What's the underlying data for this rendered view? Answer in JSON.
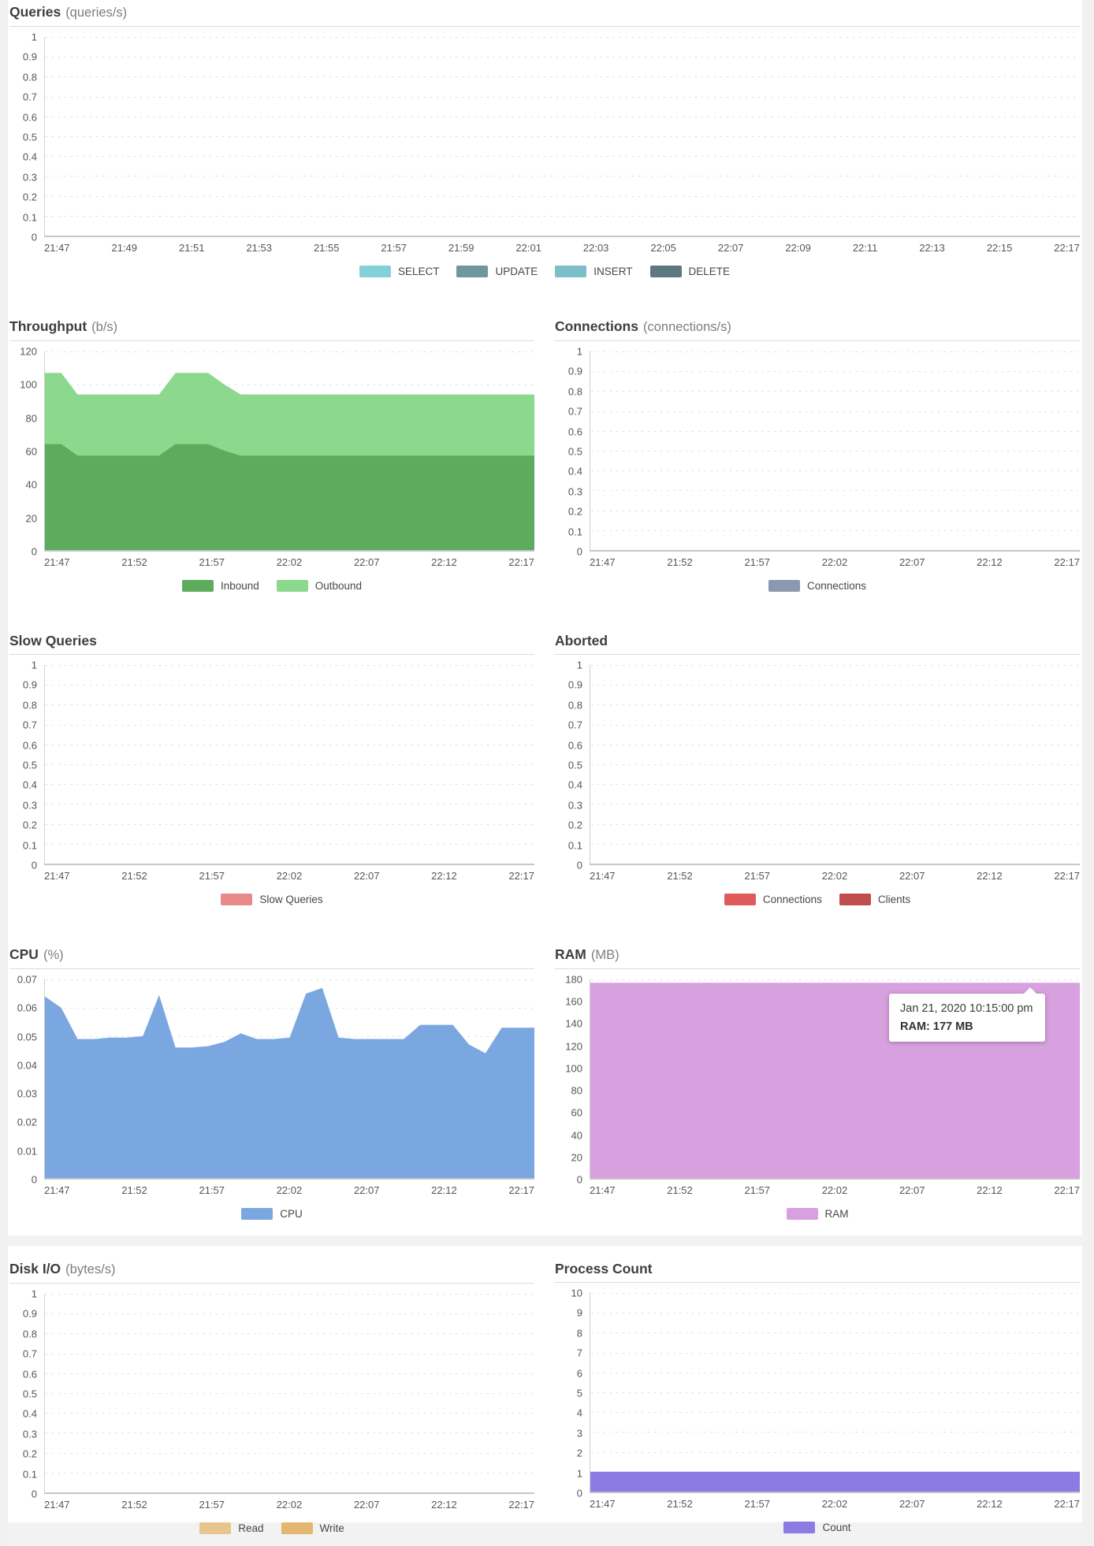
{
  "chart_data": [
    {
      "id": "queries",
      "type": "line",
      "title": "Queries",
      "unit": "(queries/s)",
      "ylim": [
        0,
        1
      ],
      "y_ticks": [
        "1",
        "0.9",
        "0.8",
        "0.7",
        "0.6",
        "0.5",
        "0.4",
        "0.3",
        "0.2",
        "0.1",
        "0"
      ],
      "x_ticks": [
        "21:47",
        "21:49",
        "21:51",
        "21:53",
        "21:55",
        "21:57",
        "21:59",
        "22:01",
        "22:03",
        "22:05",
        "22:07",
        "22:09",
        "22:11",
        "22:13",
        "22:15",
        "22:17"
      ],
      "series": [
        {
          "name": "SELECT",
          "color": "#84d0d8",
          "values": []
        },
        {
          "name": "UPDATE",
          "color": "#6e979e",
          "values": []
        },
        {
          "name": "INSERT",
          "color": "#7cbec9",
          "values": []
        },
        {
          "name": "DELETE",
          "color": "#5c7980",
          "values": []
        }
      ]
    },
    {
      "id": "throughput",
      "type": "area",
      "stacked": true,
      "title": "Throughput",
      "unit": "(b/s)",
      "ylim": [
        0,
        120
      ],
      "y_ticks": [
        "120",
        "100",
        "80",
        "60",
        "40",
        "20",
        "0"
      ],
      "x_ticks": [
        "21:47",
        "21:52",
        "21:57",
        "22:02",
        "22:07",
        "22:12",
        "22:17"
      ],
      "series": [
        {
          "name": "Inbound",
          "color": "#5dab5d",
          "values": [
            64,
            64,
            57,
            57,
            57,
            57,
            57,
            57,
            64,
            64,
            64,
            60,
            57,
            57,
            57,
            57,
            57,
            57,
            57,
            57,
            57,
            57,
            57,
            57,
            57,
            57,
            57,
            57,
            57,
            57,
            57
          ]
        },
        {
          "name": "Outbound",
          "color": "#8cd88c",
          "values": [
            43,
            43,
            37,
            37,
            37,
            37,
            37,
            37,
            43,
            43,
            43,
            40,
            37,
            37,
            37,
            37,
            37,
            37,
            37,
            37,
            37,
            37,
            37,
            37,
            37,
            37,
            37,
            37,
            37,
            37,
            37
          ]
        }
      ]
    },
    {
      "id": "connections",
      "type": "line",
      "title": "Connections",
      "unit": "(connections/s)",
      "ylim": [
        0,
        1
      ],
      "y_ticks": [
        "1",
        "0.9",
        "0.8",
        "0.7",
        "0.6",
        "0.5",
        "0.4",
        "0.3",
        "0.2",
        "0.1",
        "0"
      ],
      "x_ticks": [
        "21:47",
        "21:52",
        "21:57",
        "22:02",
        "22:07",
        "22:12",
        "22:17"
      ],
      "series": [
        {
          "name": "Connections",
          "color": "#8b99b0",
          "values": []
        }
      ]
    },
    {
      "id": "slow_queries",
      "type": "line",
      "title": "Slow Queries",
      "unit": "",
      "ylim": [
        0,
        1
      ],
      "y_ticks": [
        "1",
        "0.9",
        "0.8",
        "0.7",
        "0.6",
        "0.5",
        "0.4",
        "0.3",
        "0.2",
        "0.1",
        "0"
      ],
      "x_ticks": [
        "21:47",
        "21:52",
        "21:57",
        "22:02",
        "22:07",
        "22:12",
        "22:17"
      ],
      "series": [
        {
          "name": "Slow Queries",
          "color": "#e88a8a",
          "values": []
        }
      ]
    },
    {
      "id": "aborted",
      "type": "line",
      "title": "Aborted",
      "unit": "",
      "ylim": [
        0,
        1
      ],
      "y_ticks": [
        "1",
        "0.9",
        "0.8",
        "0.7",
        "0.6",
        "0.5",
        "0.4",
        "0.3",
        "0.2",
        "0.1",
        "0"
      ],
      "x_ticks": [
        "21:47",
        "21:52",
        "21:57",
        "22:02",
        "22:07",
        "22:12",
        "22:17"
      ],
      "series": [
        {
          "name": "Connections",
          "color": "#df5b5b",
          "values": []
        },
        {
          "name": "Clients",
          "color": "#bf4d4d",
          "values": []
        }
      ]
    },
    {
      "id": "cpu",
      "type": "area",
      "title": "CPU",
      "unit": "(%)",
      "ylim": [
        0,
        0.07
      ],
      "y_ticks": [
        "0.07",
        "0.06",
        "0.05",
        "0.04",
        "0.03",
        "0.02",
        "0.01",
        "0"
      ],
      "x_ticks": [
        "21:47",
        "21:52",
        "21:57",
        "22:02",
        "22:07",
        "22:12",
        "22:17"
      ],
      "series": [
        {
          "name": "CPU",
          "color": "#7aa7e0",
          "values": [
            0.064,
            0.06,
            0.049,
            0.049,
            0.0495,
            0.0495,
            0.05,
            0.0645,
            0.046,
            0.046,
            0.0465,
            0.048,
            0.051,
            0.049,
            0.049,
            0.0495,
            0.065,
            0.067,
            0.0495,
            0.049,
            0.049,
            0.049,
            0.049,
            0.054,
            0.054,
            0.054,
            0.047,
            0.044,
            0.053,
            0.053,
            0.053
          ]
        }
      ]
    },
    {
      "id": "ram",
      "type": "area",
      "title": "RAM",
      "unit": "(MB)",
      "ylim": [
        0,
        180
      ],
      "y_ticks": [
        "180",
        "160",
        "140",
        "120",
        "100",
        "80",
        "60",
        "40",
        "20",
        "0"
      ],
      "x_ticks": [
        "21:47",
        "21:52",
        "21:57",
        "22:02",
        "22:07",
        "22:12",
        "22:17"
      ],
      "series": [
        {
          "name": "RAM",
          "color": "#d7a0de",
          "values": [
            177,
            177
          ]
        }
      ],
      "tooltip": {
        "line1": "Jan 21, 2020 10:15:00 pm",
        "line2": "RAM: 177 MB"
      }
    },
    {
      "id": "disk_io",
      "type": "line",
      "title": "Disk I/O",
      "unit": "(bytes/s)",
      "ylim": [
        0,
        1
      ],
      "y_ticks": [
        "1",
        "0.9",
        "0.8",
        "0.7",
        "0.6",
        "0.5",
        "0.4",
        "0.3",
        "0.2",
        "0.1",
        "0"
      ],
      "x_ticks": [
        "21:47",
        "21:52",
        "21:57",
        "22:02",
        "22:07",
        "22:12",
        "22:17"
      ],
      "series": [
        {
          "name": "Read",
          "color": "#e9c58e",
          "values": []
        },
        {
          "name": "Write",
          "color": "#e3b772",
          "values": []
        }
      ]
    },
    {
      "id": "process_count",
      "type": "area",
      "title": "Process Count",
      "unit": "",
      "ylim": [
        0,
        10
      ],
      "y_ticks": [
        "10",
        "9",
        "8",
        "7",
        "6",
        "5",
        "4",
        "3",
        "2",
        "1",
        "0"
      ],
      "x_ticks": [
        "21:47",
        "21:52",
        "21:57",
        "22:02",
        "22:07",
        "22:12",
        "22:17"
      ],
      "series": [
        {
          "name": "Count",
          "color": "#8d7be4",
          "values": [
            1,
            1
          ]
        }
      ]
    }
  ]
}
